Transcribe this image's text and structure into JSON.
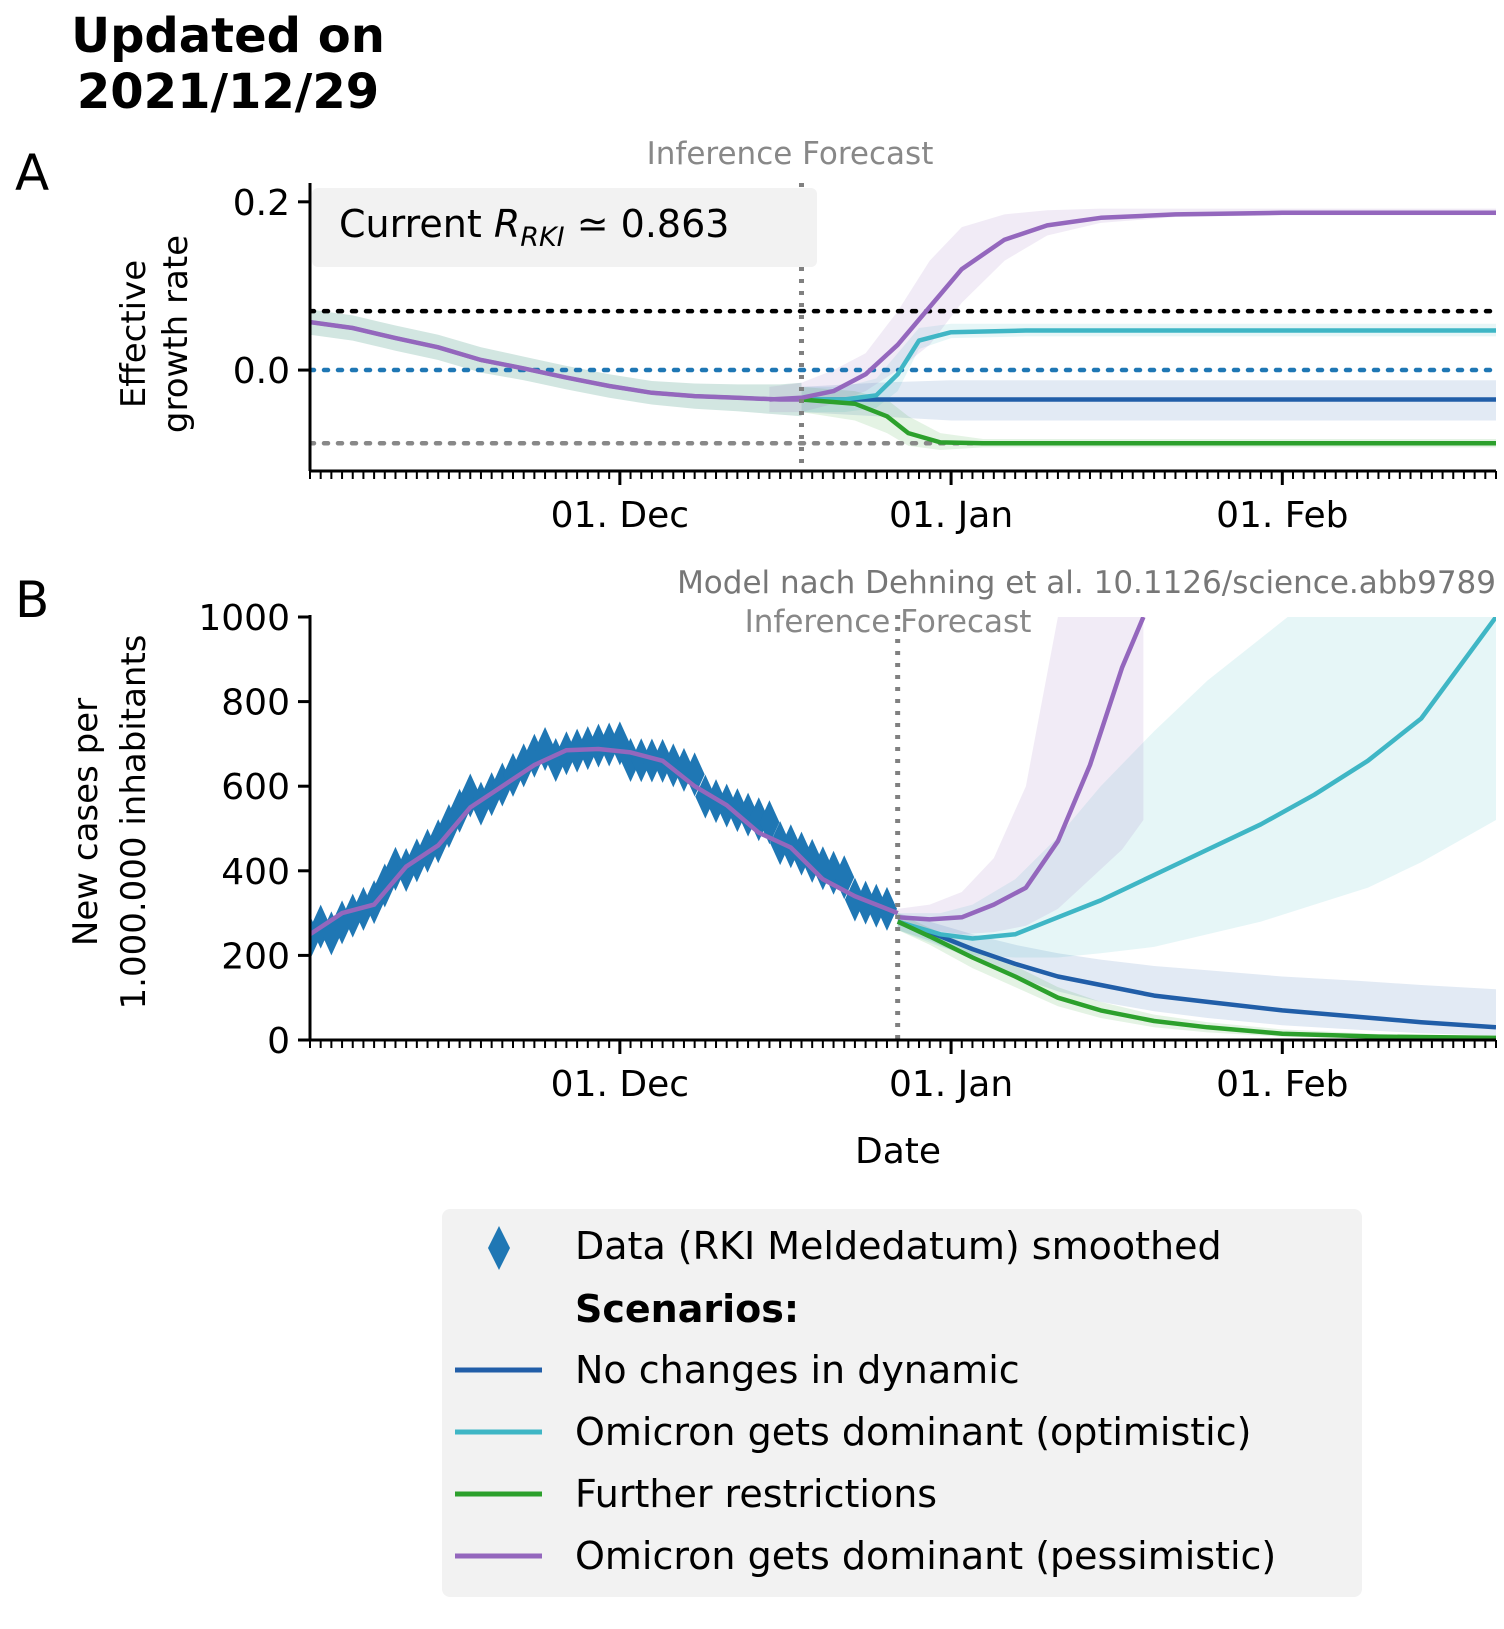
{
  "header": {
    "title_line1": "Updated on",
    "title_line2": "2021/12/29"
  },
  "colors": {
    "data": "#1f77b4",
    "no_changes": "#215ea8",
    "omicron_optimistic": "#3fb6c5",
    "further_restrictions": "#2ca02c",
    "omicron_pessimistic": "#9467bd",
    "legend_bg": "#f2f2f2",
    "annotation_grey": "#888888"
  },
  "panels": {
    "a": {
      "letter": "A",
      "phase_label": "Inference Forecast",
      "current_prefix": "Current ",
      "current_symbol": "R",
      "current_sub": "RKI",
      "current_value": " ≃ 0.863",
      "ylabel_line1": "Effective",
      "ylabel_line2": "growth rate"
    },
    "b": {
      "letter": "B",
      "citation": "Model nach Dehning et al. 10.1126/science.abb9789",
      "phase_label": "Inference Forecast",
      "ylabel_line1": "New cases per",
      "ylabel_line2": "1.000.000 inhabitants",
      "xlabel": "Date"
    }
  },
  "legend": {
    "data_label": "Data (RKI Meldedatum) smoothed",
    "scenarios_heading": "Scenarios:",
    "items": [
      {
        "label": "No changes in dynamic",
        "color_key": "no_changes"
      },
      {
        "label": "Omicron gets dominant (optimistic)",
        "color_key": "omicron_optimistic"
      },
      {
        "label": "Further restrictions",
        "color_key": "further_restrictions"
      },
      {
        "label": "Omicron gets dominant (pessimistic)",
        "color_key": "omicron_pessimistic"
      }
    ]
  },
  "chart_data": [
    {
      "type": "line",
      "panel": "A",
      "ylabel": "Effective growth rate",
      "xlim": [
        "2021-11-02",
        "2022-02-21"
      ],
      "ylim": [
        -0.12,
        0.22
      ],
      "xticks": [
        {
          "date": "2021-12-01",
          "label": "01. Dec"
        },
        {
          "date": "2022-01-01",
          "label": "01. Jan"
        },
        {
          "date": "2022-02-01",
          "label": "01. Feb"
        }
      ],
      "yticks": [
        {
          "value": 0.0,
          "label": "0.0"
        },
        {
          "value": 0.2,
          "label": "0.2"
        }
      ],
      "forecast_start": "2021-12-18",
      "hlines": [
        {
          "value": 0.07,
          "color": "#000000",
          "style": "dotted"
        },
        {
          "value": 0.0,
          "color": "#1f77b4",
          "style": "dotted"
        },
        {
          "value": -0.087,
          "color": "#888888",
          "style": "dotted"
        }
      ],
      "inference": {
        "x": [
          "2021-11-02",
          "2021-11-06",
          "2021-11-10",
          "2021-11-14",
          "2021-11-18",
          "2021-11-22",
          "2021-11-26",
          "2021-11-30",
          "2021-12-04",
          "2021-12-08",
          "2021-12-12",
          "2021-12-16",
          "2021-12-18"
        ],
        "y": [
          0.057,
          0.05,
          0.038,
          0.027,
          0.012,
          0.002,
          -0.009,
          -0.019,
          -0.027,
          -0.031,
          -0.033,
          -0.035,
          -0.035
        ],
        "band": [
          0.015,
          0.015,
          0.015,
          0.015,
          0.015,
          0.014,
          0.014,
          0.014,
          0.014,
          0.015,
          0.016,
          0.018,
          0.02
        ]
      },
      "series": [
        {
          "name": "No changes in dynamic",
          "color_key": "no_changes",
          "x": [
            "2021-12-18",
            "2021-12-25",
            "2022-01-01",
            "2022-02-01",
            "2022-02-21"
          ],
          "y": [
            -0.035,
            -0.035,
            -0.035,
            -0.035,
            -0.035
          ],
          "band_lo": [
            -0.05,
            -0.055,
            -0.06,
            -0.06,
            -0.06
          ],
          "band_hi": [
            -0.02,
            -0.015,
            -0.012,
            -0.012,
            -0.012
          ]
        },
        {
          "name": "Omicron gets dominant (optimistic)",
          "color_key": "omicron_optimistic",
          "x": [
            "2021-12-18",
            "2021-12-22",
            "2021-12-25",
            "2021-12-27",
            "2021-12-29",
            "2022-01-01",
            "2022-01-08",
            "2022-02-01",
            "2022-02-21"
          ],
          "y": [
            -0.035,
            -0.035,
            -0.03,
            -0.005,
            0.035,
            0.045,
            0.047,
            0.047,
            0.047
          ],
          "band_lo": [
            -0.05,
            -0.05,
            -0.045,
            -0.025,
            0.025,
            0.038,
            0.04,
            0.04,
            0.04
          ],
          "band_hi": [
            -0.02,
            -0.02,
            -0.01,
            0.02,
            0.05,
            0.055,
            0.055,
            0.055,
            0.055
          ]
        },
        {
          "name": "Further restrictions",
          "color_key": "further_restrictions",
          "x": [
            "2021-12-18",
            "2021-12-23",
            "2021-12-26",
            "2021-12-28",
            "2021-12-31",
            "2022-01-04",
            "2022-02-21"
          ],
          "y": [
            -0.035,
            -0.04,
            -0.055,
            -0.075,
            -0.086,
            -0.087,
            -0.087
          ],
          "band_lo": [
            -0.05,
            -0.06,
            -0.075,
            -0.09,
            -0.095,
            -0.092,
            -0.092
          ],
          "band_hi": [
            -0.02,
            -0.025,
            -0.035,
            -0.055,
            -0.075,
            -0.082,
            -0.082
          ]
        },
        {
          "name": "Omicron gets dominant (pessimistic)",
          "color_key": "omicron_pessimistic",
          "x": [
            "2021-12-15",
            "2021-12-18",
            "2021-12-21",
            "2021-12-24",
            "2021-12-27",
            "2021-12-30",
            "2022-01-02",
            "2022-01-06",
            "2022-01-10",
            "2022-01-15",
            "2022-01-22",
            "2022-02-01",
            "2022-02-21"
          ],
          "y": [
            -0.035,
            -0.033,
            -0.025,
            -0.005,
            0.03,
            0.075,
            0.12,
            0.155,
            0.172,
            0.181,
            0.185,
            0.187,
            0.187
          ],
          "band_lo": [
            -0.05,
            -0.05,
            -0.04,
            -0.025,
            0.0,
            0.03,
            0.08,
            0.13,
            0.16,
            0.175,
            0.182,
            0.184,
            0.184
          ],
          "band_hi": [
            -0.02,
            -0.015,
            0.0,
            0.02,
            0.07,
            0.13,
            0.17,
            0.185,
            0.19,
            0.192,
            0.192,
            0.192,
            0.192
          ]
        }
      ]
    },
    {
      "type": "line",
      "panel": "B",
      "ylabel": "New cases per 1.000.000 inhabitants",
      "xlabel": "Date",
      "xlim": [
        "2021-11-02",
        "2022-02-21"
      ],
      "ylim": [
        0,
        1000
      ],
      "xticks": [
        {
          "date": "2021-12-01",
          "label": "01. Dec"
        },
        {
          "date": "2022-01-01",
          "label": "01. Jan"
        },
        {
          "date": "2022-02-01",
          "label": "01. Feb"
        }
      ],
      "yticks": [
        {
          "value": 0,
          "label": "0"
        },
        {
          "value": 200,
          "label": "200"
        },
        {
          "value": 400,
          "label": "400"
        },
        {
          "value": 600,
          "label": "600"
        },
        {
          "value": 800,
          "label": "800"
        },
        {
          "value": 1000,
          "label": "1000"
        }
      ],
      "forecast_start": "2021-12-27",
      "observed": {
        "name": "Data (RKI Meldedatum) smoothed",
        "x": [
          "2021-11-02",
          "2021-11-05",
          "2021-11-08",
          "2021-11-11",
          "2021-11-14",
          "2021-11-17",
          "2021-11-20",
          "2021-11-23",
          "2021-11-26",
          "2021-11-29",
          "2021-12-02",
          "2021-12-05",
          "2021-12-08",
          "2021-12-11",
          "2021-12-14",
          "2021-12-17",
          "2021-12-20",
          "2021-12-23",
          "2021-12-26"
        ],
        "y": [
          230,
          290,
          320,
          420,
          470,
          560,
          610,
          660,
          690,
          690,
          680,
          660,
          610,
          560,
          510,
          470,
          400,
          350,
          310
        ]
      },
      "inference": {
        "x": [
          "2021-11-02",
          "2021-11-05",
          "2021-11-08",
          "2021-11-11",
          "2021-11-14",
          "2021-11-17",
          "2021-11-20",
          "2021-11-23",
          "2021-11-26",
          "2021-11-29",
          "2021-12-02",
          "2021-12-05",
          "2021-12-08",
          "2021-12-11",
          "2021-12-14",
          "2021-12-17",
          "2021-12-20",
          "2021-12-23",
          "2021-12-27"
        ],
        "y": [
          250,
          300,
          320,
          410,
          460,
          550,
          600,
          650,
          685,
          688,
          680,
          660,
          600,
          555,
          490,
          455,
          380,
          340,
          300
        ]
      },
      "series": [
        {
          "name": "No changes in dynamic",
          "color_key": "no_changes",
          "x": [
            "2021-12-27",
            "2021-12-30",
            "2022-01-03",
            "2022-01-07",
            "2022-01-11",
            "2022-01-15",
            "2022-01-20",
            "2022-01-25",
            "2022-02-01",
            "2022-02-08",
            "2022-02-14",
            "2022-02-21"
          ],
          "y": [
            280,
            255,
            215,
            180,
            150,
            130,
            105,
            90,
            70,
            55,
            42,
            30
          ],
          "band_lo": [
            260,
            235,
            190,
            150,
            115,
            90,
            68,
            52,
            35,
            24,
            16,
            10
          ],
          "band_hi": [
            300,
            280,
            250,
            225,
            205,
            190,
            175,
            165,
            150,
            140,
            130,
            120
          ]
        },
        {
          "name": "Omicron gets dominant (optimistic)",
          "color_key": "omicron_optimistic",
          "x": [
            "2021-12-27",
            "2021-12-31",
            "2022-01-03",
            "2022-01-07",
            "2022-01-11",
            "2022-01-15",
            "2022-01-20",
            "2022-01-25",
            "2022-01-30",
            "2022-02-04",
            "2022-02-09",
            "2022-02-14",
            "2022-02-21"
          ],
          "y": [
            280,
            250,
            240,
            250,
            290,
            330,
            390,
            450,
            510,
            580,
            660,
            760,
            1000
          ],
          "band_lo": [
            260,
            220,
            200,
            195,
            195,
            205,
            220,
            250,
            280,
            320,
            360,
            420,
            520
          ],
          "band_hi": [
            300,
            300,
            320,
            380,
            480,
            600,
            730,
            850,
            950,
            1050,
            1150,
            1250,
            1400
          ]
        },
        {
          "name": "Further restrictions",
          "color_key": "further_restrictions",
          "x": [
            "2021-12-27",
            "2021-12-30",
            "2022-01-03",
            "2022-01-07",
            "2022-01-11",
            "2022-01-15",
            "2022-01-20",
            "2022-01-25",
            "2022-02-01",
            "2022-02-10",
            "2022-02-21"
          ],
          "y": [
            280,
            245,
            195,
            150,
            100,
            70,
            45,
            30,
            15,
            8,
            5
          ],
          "band_lo": [
            260,
            225,
            170,
            125,
            80,
            52,
            30,
            18,
            8,
            4,
            2
          ],
          "band_hi": [
            300,
            265,
            220,
            175,
            125,
            90,
            60,
            42,
            25,
            14,
            8
          ]
        },
        {
          "name": "Omicron gets dominant (pessimistic)",
          "color_key": "omicron_pessimistic",
          "x": [
            "2021-12-27",
            "2021-12-30",
            "2022-01-02",
            "2022-01-05",
            "2022-01-08",
            "2022-01-11",
            "2022-01-14",
            "2022-01-17",
            "2022-01-19"
          ],
          "y": [
            290,
            285,
            290,
            320,
            360,
            470,
            650,
            880,
            1000
          ],
          "band_lo": [
            270,
            260,
            250,
            255,
            270,
            310,
            380,
            450,
            520
          ],
          "band_hi": [
            310,
            320,
            350,
            430,
            600,
            1000,
            1400,
            1800,
            2200
          ]
        }
      ]
    }
  ]
}
